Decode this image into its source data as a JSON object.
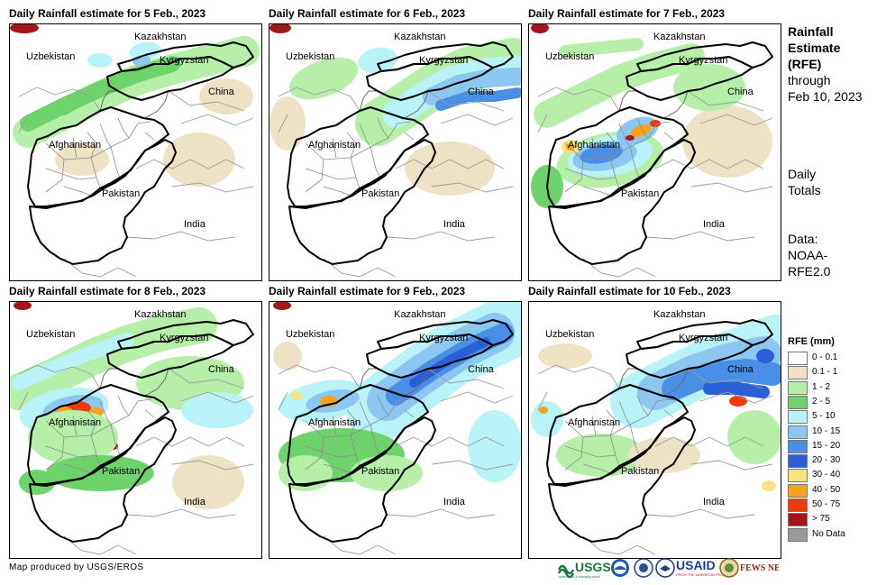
{
  "panels": [
    {
      "title": "Daily Rainfall estimate for 5 Feb., 2023"
    },
    {
      "title": "Daily Rainfall estimate for 6 Feb., 2023"
    },
    {
      "title": "Daily Rainfall estimate for 7 Feb., 2023"
    },
    {
      "title": "Daily Rainfall estimate for 8 Feb., 2023"
    },
    {
      "title": "Daily Rainfall estimate for 9 Feb., 2023"
    },
    {
      "title": "Daily Rainfall estimate for 10 Feb., 2023"
    }
  ],
  "places": {
    "kazakhstan": "Kazakhstan",
    "uzbekistan": "Uzbekistan",
    "kyrgyzstan": "Kyrgyzstan",
    "china": "China",
    "afghanistan": "Afghanistan",
    "pakistan": "Pakistan",
    "india": "India"
  },
  "side": {
    "title_line1": "Rainfall",
    "title_line2": "Estimate",
    "title_line3": "(RFE)",
    "title_line4": "through",
    "title_line5": "Feb 10, 2023",
    "daily_line1": "Daily",
    "daily_line2": "Totals",
    "data_line1": "Data:",
    "data_line2": "NOAA-",
    "data_line3": "RFE2.0"
  },
  "legend": {
    "title": "RFE (mm)",
    "items": [
      {
        "label": "0 - 0.1",
        "color": "#ffffff"
      },
      {
        "label": "0.1 - 1",
        "color": "#ede3c4"
      },
      {
        "label": "1 - 2",
        "color": "#b6f0a8"
      },
      {
        "label": "2 - 5",
        "color": "#6ed36a"
      },
      {
        "label": "5 - 10",
        "color": "#b7f3f7"
      },
      {
        "label": "10 - 15",
        "color": "#8bc7f0"
      },
      {
        "label": "15 - 20",
        "color": "#4a8fe6"
      },
      {
        "label": "20 - 30",
        "color": "#2a5fd8"
      },
      {
        "label": "30 - 40",
        "color": "#fae282"
      },
      {
        "label": "40 - 50",
        "color": "#f7a21a"
      },
      {
        "label": "50 - 75",
        "color": "#ef3b0c"
      },
      {
        "label": "> 75",
        "color": "#a4161a"
      },
      {
        "label": "No Data",
        "color": "#999999"
      }
    ]
  },
  "credit": "Map produced by USGS/EROS",
  "logos": {
    "usgs": "USGS",
    "usgs_tag": "science for a changing world",
    "usaid": "USAID",
    "usaid_tag": "FROM THE AMERICAN PEOPLE",
    "fewsnet": "FEWS NET"
  }
}
